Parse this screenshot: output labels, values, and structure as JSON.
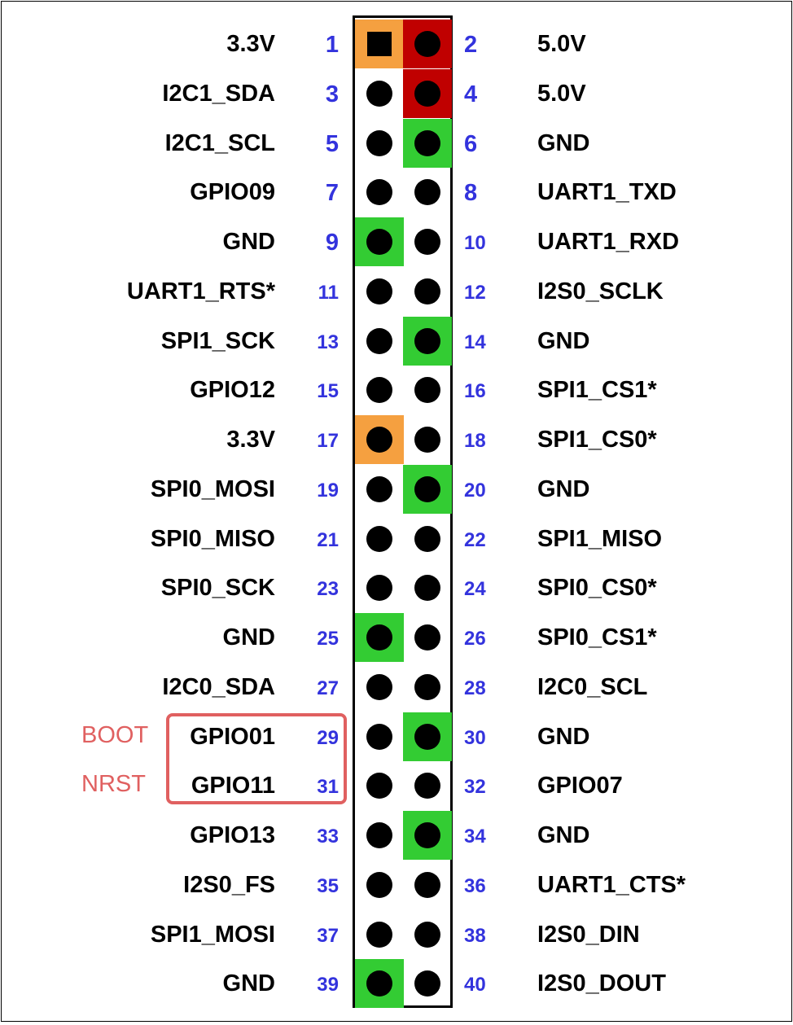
{
  "colors": {
    "power_3v3": "#f5a040",
    "power_5v": "#c00000",
    "ground": "#33cc33",
    "pin_number": "#3333dd",
    "callout": "#e06060"
  },
  "callout": {
    "notes": [
      {
        "text": "BOOT",
        "pin": 29
      },
      {
        "text": "NRST",
        "pin": 31
      }
    ]
  },
  "pins": [
    {
      "left": {
        "label": "3.3V",
        "num": "1",
        "type": "3v3",
        "shape": "square"
      },
      "right": {
        "label": "5.0V",
        "num": "2",
        "type": "5v"
      }
    },
    {
      "left": {
        "label": "I2C1_SDA",
        "num": "3",
        "type": ""
      },
      "right": {
        "label": "5.0V",
        "num": "4",
        "type": "5v"
      }
    },
    {
      "left": {
        "label": "I2C1_SCL",
        "num": "5",
        "type": ""
      },
      "right": {
        "label": "GND",
        "num": "6",
        "type": "gnd"
      }
    },
    {
      "left": {
        "label": "GPIO09",
        "num": "7",
        "type": ""
      },
      "right": {
        "label": "UART1_TXD",
        "num": "8",
        "type": ""
      }
    },
    {
      "left": {
        "label": "GND",
        "num": "9",
        "type": "gnd"
      },
      "right": {
        "label": "UART1_RXD",
        "num": "10",
        "type": ""
      }
    },
    {
      "left": {
        "label": "UART1_RTS*",
        "num": "11",
        "type": ""
      },
      "right": {
        "label": "I2S0_SCLK",
        "num": "12",
        "type": ""
      }
    },
    {
      "left": {
        "label": "SPI1_SCK",
        "num": "13",
        "type": ""
      },
      "right": {
        "label": "GND",
        "num": "14",
        "type": "gnd"
      }
    },
    {
      "left": {
        "label": "GPIO12",
        "num": "15",
        "type": ""
      },
      "right": {
        "label": "SPI1_CS1*",
        "num": "16",
        "type": ""
      }
    },
    {
      "left": {
        "label": "3.3V",
        "num": "17",
        "type": "3v3"
      },
      "right": {
        "label": "SPI1_CS0*",
        "num": "18",
        "type": ""
      }
    },
    {
      "left": {
        "label": "SPI0_MOSI",
        "num": "19",
        "type": ""
      },
      "right": {
        "label": "GND",
        "num": "20",
        "type": "gnd"
      }
    },
    {
      "left": {
        "label": "SPI0_MISO",
        "num": "21",
        "type": ""
      },
      "right": {
        "label": "SPI1_MISO",
        "num": "22",
        "type": ""
      }
    },
    {
      "left": {
        "label": "SPI0_SCK",
        "num": "23",
        "type": ""
      },
      "right": {
        "label": "SPI0_CS0*",
        "num": "24",
        "type": ""
      }
    },
    {
      "left": {
        "label": "GND",
        "num": "25",
        "type": "gnd"
      },
      "right": {
        "label": "SPI0_CS1*",
        "num": "26",
        "type": ""
      }
    },
    {
      "left": {
        "label": "I2C0_SDA",
        "num": "27",
        "type": ""
      },
      "right": {
        "label": "I2C0_SCL",
        "num": "28",
        "type": ""
      }
    },
    {
      "left": {
        "label": "GPIO01",
        "num": "29",
        "type": ""
      },
      "right": {
        "label": "GND",
        "num": "30",
        "type": "gnd"
      }
    },
    {
      "left": {
        "label": "GPIO11",
        "num": "31",
        "type": ""
      },
      "right": {
        "label": "GPIO07",
        "num": "32",
        "type": ""
      }
    },
    {
      "left": {
        "label": "GPIO13",
        "num": "33",
        "type": ""
      },
      "right": {
        "label": "GND",
        "num": "34",
        "type": "gnd"
      }
    },
    {
      "left": {
        "label": "I2S0_FS",
        "num": "35",
        "type": ""
      },
      "right": {
        "label": "UART1_CTS*",
        "num": "36",
        "type": ""
      }
    },
    {
      "left": {
        "label": "SPI1_MOSI",
        "num": "37",
        "type": ""
      },
      "right": {
        "label": "I2S0_DIN",
        "num": "38",
        "type": ""
      }
    },
    {
      "left": {
        "label": "GND",
        "num": "39",
        "type": "gnd"
      },
      "right": {
        "label": "I2S0_DOUT",
        "num": "40",
        "type": ""
      }
    }
  ]
}
